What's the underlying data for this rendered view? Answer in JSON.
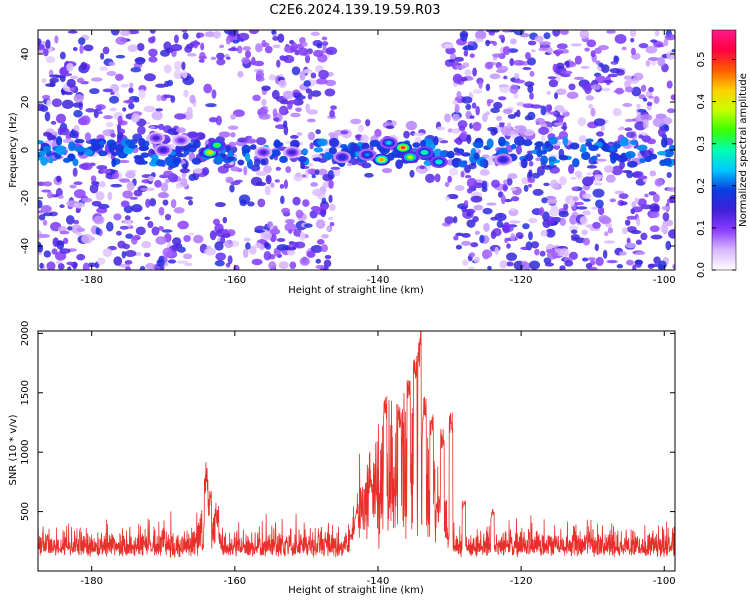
{
  "title": "C2E6.2024.139.19.59.R03",
  "chart_data": [
    {
      "type": "heatmap",
      "name": "spectrogram",
      "xlabel": "Height of straight line (km)",
      "ylabel": "Frequency (Hz)",
      "xlim": [
        -187.5,
        -98.5
      ],
      "ylim": [
        -50,
        50
      ],
      "xticks": [
        -180,
        -160,
        -140,
        -120,
        -100
      ],
      "yticks": [
        -40,
        -20,
        0,
        20,
        40
      ],
      "colorbar": {
        "label": "Normalized spectral amplitude",
        "range": [
          0,
          0.57
        ],
        "ticks": [
          0.0,
          0.1,
          0.2,
          0.3,
          0.4,
          0.5
        ],
        "colors": [
          "#ffffff",
          "#d9b8ff",
          "#8a3cff",
          "#3f1fd9",
          "#0a3fe0",
          "#00c8ff",
          "#00ffb0",
          "#3cff00",
          "#c8ff00",
          "#ffd000",
          "#ff5a00",
          "#ff0040",
          "#ff1a8c"
        ]
      },
      "blank_region_km": [
        -130.5,
        -127.0
      ],
      "blank_region_hz_upper": [
        10,
        50
      ],
      "blank_region_hz_lower": [
        -50,
        -10
      ],
      "blank_region_2_km": [
        -146,
        -130.5
      ],
      "signal_band_hz": [
        -6,
        4
      ],
      "hotspots": [
        {
          "x": -163.5,
          "y": -1,
          "amp": 0.42
        },
        {
          "x": -162.5,
          "y": 2,
          "amp": 0.33
        },
        {
          "x": -136.5,
          "y": 1,
          "amp": 0.5
        },
        {
          "x": -139.5,
          "y": -4,
          "amp": 0.45
        },
        {
          "x": -135.5,
          "y": -3,
          "amp": 0.38
        },
        {
          "x": -133.5,
          "y": -1,
          "amp": 0.3
        },
        {
          "x": -131.5,
          "y": -5,
          "amp": 0.28
        },
        {
          "x": -138.5,
          "y": 3,
          "amp": 0.25
        },
        {
          "x": -141.5,
          "y": -2,
          "amp": 0.22
        },
        {
          "x": -145.0,
          "y": -3,
          "amp": 0.18
        },
        {
          "x": -152.0,
          "y": -1,
          "amp": 0.15
        },
        {
          "x": -156.0,
          "y": -1,
          "amp": 0.14
        },
        {
          "x": -170.0,
          "y": 0,
          "amp": 0.16
        },
        {
          "x": -171.0,
          "y": 5,
          "amp": 0.14
        },
        {
          "x": -122.5,
          "y": -4,
          "amp": 0.18
        },
        {
          "x": -167.5,
          "y": 4,
          "amp": 0.12
        }
      ]
    },
    {
      "type": "line",
      "name": "snr",
      "xlabel": "Height of straight line (km)",
      "ylabel": "SNR (10 * v/v)",
      "xlim": [
        -187.5,
        -98.5
      ],
      "ylim": [
        0,
        2020
      ],
      "xticks": [
        -180,
        -160,
        -140,
        -120,
        -100
      ],
      "yticks": [
        500,
        1000,
        1500,
        2000
      ],
      "color": "#e8302b",
      "baseline": 150,
      "noise": 110,
      "peaks": [
        {
          "x": -164.0,
          "y": 720
        },
        {
          "x": -163.5,
          "y": 500
        },
        {
          "x": -162.5,
          "y": 420
        },
        {
          "x": -139.0,
          "y": 1480
        },
        {
          "x": -137.0,
          "y": 1410
        },
        {
          "x": -135.7,
          "y": 1620
        },
        {
          "x": -134.8,
          "y": 1900
        },
        {
          "x": -134.2,
          "y": 2020
        },
        {
          "x": -133.5,
          "y": 1480
        },
        {
          "x": -132.5,
          "y": 1330
        },
        {
          "x": -131.0,
          "y": 1200
        },
        {
          "x": -129.8,
          "y": 1350
        },
        {
          "x": -141.0,
          "y": 750
        },
        {
          "x": -143.0,
          "y": 500
        },
        {
          "x": -128.0,
          "y": 600
        },
        {
          "x": -124.0,
          "y": 520
        }
      ],
      "envelope": {
        "x_start": -144,
        "x_end": -129.5,
        "level": 900
      }
    }
  ]
}
